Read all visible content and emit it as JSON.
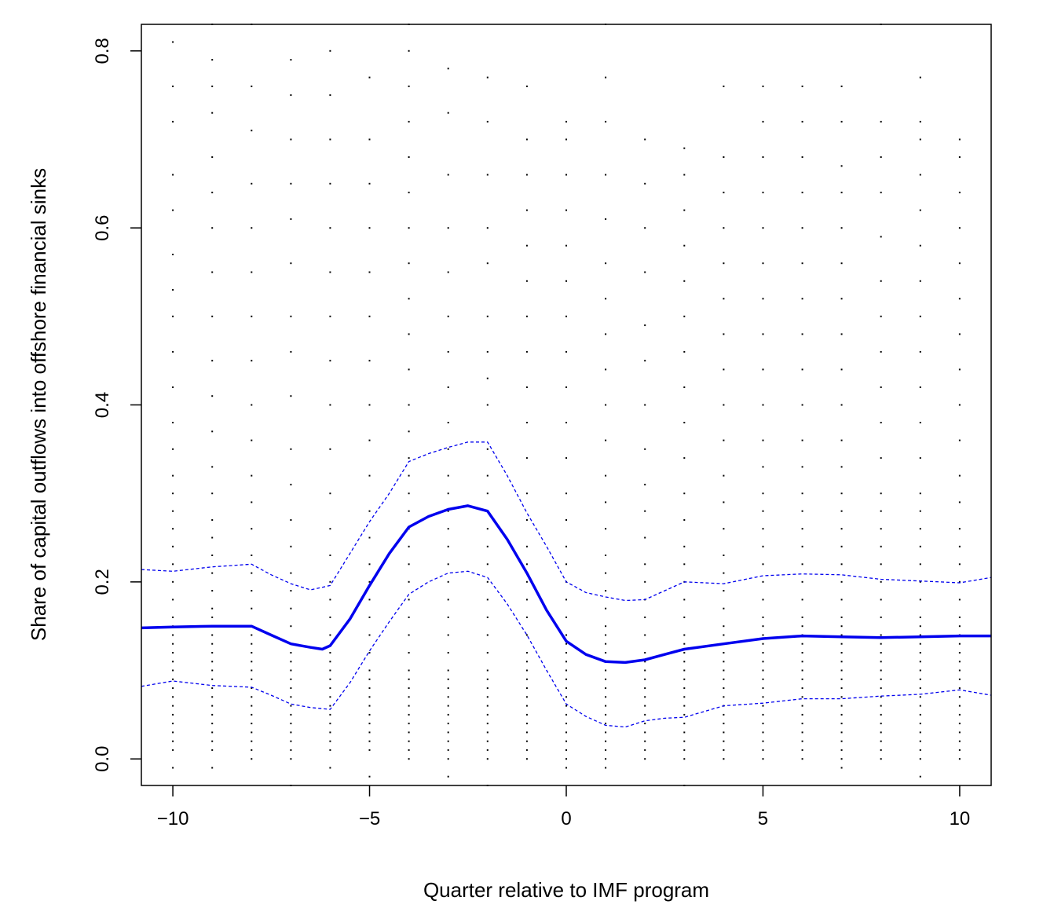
{
  "chart_data": {
    "type": "scatter",
    "title": "",
    "xlabel": "Quarter relative to IMF program",
    "ylabel": "Share of capital outflows into offshore financial sinks",
    "xlim": [
      -10.8,
      10.8
    ],
    "ylim": [
      -0.03,
      0.83
    ],
    "x_ticks": [
      -10,
      -5,
      0,
      5,
      10
    ],
    "x_tick_labels": [
      "−10",
      "−5",
      "0",
      "5",
      "10"
    ],
    "y_ticks": [
      0.0,
      0.2,
      0.4,
      0.6,
      0.8
    ],
    "y_tick_labels": [
      "0.0",
      "0.2",
      "0.4",
      "0.6",
      "0.8"
    ],
    "grid": false,
    "legend": "none",
    "colors": {
      "points": "#000000",
      "fit": "#0000ee",
      "band": "#0000ee",
      "frame": "#000000"
    },
    "points_by_quarter": [
      {
        "x": -10,
        "y": [
          0.01,
          0.02,
          0.03,
          0.04,
          0.05,
          0.06,
          0.07,
          0.08,
          0.09,
          0.1,
          0.11,
          0.12,
          0.13,
          0.14,
          0.15,
          0.16,
          0.18,
          0.2,
          0.22,
          0.24,
          0.26,
          0.28,
          0.3,
          0.32,
          0.35,
          0.38,
          0.42,
          0.46,
          0.5,
          0.53,
          0.57,
          0.62,
          0.66,
          0.72,
          0.76,
          0.81,
          -0.01
        ]
      },
      {
        "x": -9,
        "y": [
          0.01,
          0.02,
          0.03,
          0.04,
          0.05,
          0.06,
          0.07,
          0.08,
          0.09,
          0.1,
          0.11,
          0.12,
          0.13,
          0.14,
          0.15,
          0.16,
          0.17,
          0.19,
          0.21,
          0.23,
          0.25,
          0.27,
          0.3,
          0.33,
          0.37,
          0.41,
          0.45,
          0.5,
          0.55,
          0.6,
          0.64,
          0.68,
          0.73,
          0.76,
          0.79,
          0.83,
          -0.01
        ]
      },
      {
        "x": -8,
        "y": [
          0.0,
          0.01,
          0.02,
          0.03,
          0.04,
          0.05,
          0.06,
          0.07,
          0.08,
          0.09,
          0.1,
          0.11,
          0.12,
          0.13,
          0.14,
          0.15,
          0.17,
          0.19,
          0.21,
          0.23,
          0.26,
          0.29,
          0.32,
          0.36,
          0.4,
          0.45,
          0.5,
          0.55,
          0.6,
          0.65,
          0.71,
          0.76,
          0.83
        ]
      },
      {
        "x": -7,
        "y": [
          0.0,
          0.01,
          0.02,
          0.03,
          0.04,
          0.05,
          0.06,
          0.07,
          0.08,
          0.09,
          0.1,
          0.11,
          0.12,
          0.13,
          0.15,
          0.17,
          0.19,
          0.21,
          0.24,
          0.27,
          0.31,
          0.35,
          0.41,
          0.46,
          0.5,
          0.56,
          0.61,
          0.65,
          0.7,
          0.75,
          0.79,
          -0.03
        ]
      },
      {
        "x": -6,
        "y": [
          0.01,
          0.02,
          0.03,
          0.04,
          0.05,
          0.06,
          0.07,
          0.08,
          0.09,
          0.1,
          0.11,
          0.12,
          0.14,
          0.16,
          0.18,
          0.2,
          0.23,
          0.26,
          0.3,
          0.35,
          0.4,
          0.45,
          0.5,
          0.55,
          0.6,
          0.65,
          0.7,
          0.75,
          0.8,
          -0.01
        ]
      },
      {
        "x": -5,
        "y": [
          0.01,
          0.02,
          0.03,
          0.04,
          0.05,
          0.06,
          0.07,
          0.08,
          0.09,
          0.1,
          0.12,
          0.14,
          0.16,
          0.18,
          0.2,
          0.22,
          0.25,
          0.28,
          0.32,
          0.36,
          0.4,
          0.45,
          0.5,
          0.55,
          0.6,
          0.65,
          0.7,
          0.77,
          -0.02
        ]
      },
      {
        "x": -4,
        "y": [
          0.0,
          0.01,
          0.02,
          0.03,
          0.04,
          0.05,
          0.06,
          0.07,
          0.08,
          0.09,
          0.1,
          0.12,
          0.14,
          0.16,
          0.18,
          0.2,
          0.22,
          0.24,
          0.26,
          0.28,
          0.3,
          0.32,
          0.34,
          0.37,
          0.4,
          0.44,
          0.48,
          0.52,
          0.56,
          0.6,
          0.64,
          0.68,
          0.72,
          0.76,
          0.8,
          0.83
        ]
      },
      {
        "x": -3,
        "y": [
          0.0,
          0.01,
          0.02,
          0.03,
          0.04,
          0.05,
          0.06,
          0.07,
          0.08,
          0.09,
          0.1,
          0.12,
          0.14,
          0.16,
          0.18,
          0.2,
          0.22,
          0.24,
          0.26,
          0.28,
          0.3,
          0.32,
          0.35,
          0.38,
          0.42,
          0.46,
          0.5,
          0.55,
          0.6,
          0.66,
          0.73,
          0.78,
          -0.02
        ]
      },
      {
        "x": -2,
        "y": [
          0.0,
          0.01,
          0.02,
          0.03,
          0.04,
          0.05,
          0.06,
          0.07,
          0.08,
          0.09,
          0.1,
          0.12,
          0.14,
          0.16,
          0.18,
          0.2,
          0.22,
          0.24,
          0.26,
          0.28,
          0.3,
          0.32,
          0.35,
          0.4,
          0.43,
          0.46,
          0.5,
          0.56,
          0.6,
          0.66,
          0.72,
          0.77,
          -0.03
        ]
      },
      {
        "x": -1,
        "y": [
          0.0,
          0.01,
          0.02,
          0.03,
          0.04,
          0.05,
          0.06,
          0.07,
          0.08,
          0.09,
          0.1,
          0.11,
          0.12,
          0.14,
          0.16,
          0.18,
          0.2,
          0.22,
          0.24,
          0.27,
          0.3,
          0.34,
          0.38,
          0.42,
          0.46,
          0.5,
          0.54,
          0.58,
          0.62,
          0.66,
          0.7,
          0.76
        ]
      },
      {
        "x": 0,
        "y": [
          0.0,
          0.01,
          0.02,
          0.03,
          0.04,
          0.05,
          0.06,
          0.07,
          0.08,
          0.09,
          0.1,
          0.11,
          0.12,
          0.13,
          0.14,
          0.16,
          0.18,
          0.2,
          0.22,
          0.24,
          0.27,
          0.3,
          0.34,
          0.38,
          0.42,
          0.46,
          0.5,
          0.54,
          0.58,
          0.62,
          0.66,
          0.7,
          0.72,
          -0.01
        ]
      },
      {
        "x": 1,
        "y": [
          0.0,
          0.01,
          0.02,
          0.03,
          0.04,
          0.05,
          0.06,
          0.07,
          0.08,
          0.09,
          0.1,
          0.11,
          0.12,
          0.13,
          0.14,
          0.15,
          0.17,
          0.19,
          0.21,
          0.23,
          0.26,
          0.29,
          0.32,
          0.36,
          0.4,
          0.44,
          0.48,
          0.52,
          0.56,
          0.61,
          0.66,
          0.72,
          0.77,
          0.83,
          -0.01
        ]
      },
      {
        "x": 2,
        "y": [
          0.0,
          0.01,
          0.02,
          0.03,
          0.04,
          0.05,
          0.06,
          0.07,
          0.08,
          0.09,
          0.1,
          0.11,
          0.12,
          0.14,
          0.16,
          0.18,
          0.2,
          0.22,
          0.25,
          0.28,
          0.31,
          0.35,
          0.4,
          0.45,
          0.49,
          0.55,
          0.6,
          0.65,
          0.7
        ]
      },
      {
        "x": 3,
        "y": [
          0.0,
          0.01,
          0.02,
          0.03,
          0.04,
          0.05,
          0.06,
          0.07,
          0.08,
          0.09,
          0.1,
          0.11,
          0.12,
          0.13,
          0.14,
          0.16,
          0.18,
          0.2,
          0.22,
          0.24,
          0.27,
          0.3,
          0.34,
          0.38,
          0.42,
          0.46,
          0.5,
          0.54,
          0.58,
          0.62,
          0.66,
          0.69,
          -0.03
        ]
      },
      {
        "x": 4,
        "y": [
          0.0,
          0.01,
          0.02,
          0.03,
          0.04,
          0.05,
          0.06,
          0.07,
          0.08,
          0.09,
          0.1,
          0.11,
          0.12,
          0.13,
          0.14,
          0.15,
          0.17,
          0.19,
          0.21,
          0.23,
          0.26,
          0.29,
          0.32,
          0.36,
          0.4,
          0.44,
          0.48,
          0.52,
          0.56,
          0.6,
          0.64,
          0.68,
          0.76
        ]
      },
      {
        "x": 5,
        "y": [
          0.0,
          0.01,
          0.02,
          0.03,
          0.04,
          0.05,
          0.06,
          0.07,
          0.08,
          0.09,
          0.1,
          0.11,
          0.12,
          0.13,
          0.14,
          0.15,
          0.16,
          0.18,
          0.2,
          0.22,
          0.24,
          0.26,
          0.28,
          0.3,
          0.33,
          0.36,
          0.4,
          0.44,
          0.48,
          0.52,
          0.56,
          0.6,
          0.64,
          0.68,
          0.72,
          0.76
        ]
      },
      {
        "x": 6,
        "y": [
          0.0,
          0.01,
          0.02,
          0.03,
          0.04,
          0.05,
          0.06,
          0.07,
          0.08,
          0.09,
          0.1,
          0.11,
          0.12,
          0.13,
          0.14,
          0.15,
          0.16,
          0.18,
          0.2,
          0.22,
          0.24,
          0.26,
          0.28,
          0.3,
          0.33,
          0.36,
          0.4,
          0.44,
          0.48,
          0.52,
          0.56,
          0.6,
          0.64,
          0.68,
          0.72,
          0.76
        ]
      },
      {
        "x": 7,
        "y": [
          0.0,
          0.01,
          0.02,
          0.03,
          0.04,
          0.05,
          0.06,
          0.07,
          0.08,
          0.09,
          0.1,
          0.11,
          0.12,
          0.13,
          0.14,
          0.15,
          0.16,
          0.18,
          0.2,
          0.22,
          0.24,
          0.26,
          0.28,
          0.3,
          0.33,
          0.36,
          0.4,
          0.44,
          0.48,
          0.52,
          0.56,
          0.6,
          0.64,
          0.67,
          0.72,
          0.76,
          -0.01
        ]
      },
      {
        "x": 8,
        "y": [
          0.0,
          0.01,
          0.02,
          0.03,
          0.04,
          0.05,
          0.06,
          0.07,
          0.08,
          0.09,
          0.1,
          0.11,
          0.12,
          0.13,
          0.14,
          0.16,
          0.18,
          0.2,
          0.22,
          0.24,
          0.26,
          0.28,
          0.3,
          0.34,
          0.38,
          0.42,
          0.46,
          0.5,
          0.54,
          0.59,
          0.64,
          0.68,
          0.72,
          0.83
        ]
      },
      {
        "x": 9,
        "y": [
          0.0,
          0.01,
          0.02,
          0.03,
          0.04,
          0.05,
          0.06,
          0.07,
          0.08,
          0.09,
          0.1,
          0.11,
          0.12,
          0.13,
          0.14,
          0.15,
          0.16,
          0.18,
          0.2,
          0.22,
          0.24,
          0.26,
          0.28,
          0.3,
          0.34,
          0.38,
          0.42,
          0.46,
          0.5,
          0.54,
          0.58,
          0.62,
          0.66,
          0.7,
          0.72,
          0.77,
          -0.02
        ]
      },
      {
        "x": 10,
        "y": [
          0.0,
          0.01,
          0.02,
          0.03,
          0.04,
          0.05,
          0.06,
          0.07,
          0.08,
          0.09,
          0.1,
          0.11,
          0.12,
          0.13,
          0.14,
          0.15,
          0.16,
          0.18,
          0.2,
          0.22,
          0.24,
          0.26,
          0.29,
          0.32,
          0.36,
          0.4,
          0.44,
          0.48,
          0.52,
          0.56,
          0.6,
          0.64,
          0.68,
          0.7
        ]
      }
    ],
    "series": [
      {
        "role": "fit",
        "style": "solid",
        "x": [
          -10.8,
          -10,
          -9,
          -8,
          -7.5,
          -7,
          -6.5,
          -6.2,
          -6,
          -5.5,
          -5,
          -4.5,
          -4,
          -3.5,
          -3,
          -2.5,
          -2,
          -1.5,
          -1,
          -0.5,
          0,
          0.5,
          1,
          1.5,
          2,
          2.5,
          3,
          4,
          5,
          6,
          7,
          8,
          9,
          10,
          10.8
        ],
        "y": [
          0.148,
          0.149,
          0.15,
          0.15,
          0.14,
          0.13,
          0.126,
          0.124,
          0.128,
          0.158,
          0.196,
          0.232,
          0.262,
          0.274,
          0.282,
          0.286,
          0.28,
          0.248,
          0.21,
          0.168,
          0.133,
          0.118,
          0.11,
          0.109,
          0.112,
          0.118,
          0.124,
          0.13,
          0.136,
          0.139,
          0.138,
          0.137,
          0.138,
          0.139,
          0.139
        ]
      },
      {
        "role": "upper-band",
        "style": "dashed",
        "x": [
          -10.8,
          -10,
          -9,
          -8,
          -7.5,
          -7,
          -6.5,
          -6,
          -5.5,
          -5,
          -4.5,
          -4,
          -3.5,
          -3,
          -2.5,
          -2,
          -1.5,
          -1,
          -0.5,
          0,
          0.5,
          1,
          1.5,
          2,
          2.5,
          3,
          4,
          5,
          6,
          7,
          8,
          9,
          10,
          10.8
        ],
        "y": [
          0.214,
          0.212,
          0.217,
          0.22,
          0.208,
          0.198,
          0.191,
          0.196,
          0.232,
          0.268,
          0.3,
          0.336,
          0.345,
          0.352,
          0.358,
          0.358,
          0.32,
          0.278,
          0.24,
          0.2,
          0.188,
          0.183,
          0.179,
          0.18,
          0.19,
          0.2,
          0.198,
          0.207,
          0.209,
          0.208,
          0.203,
          0.201,
          0.199,
          0.205
        ]
      },
      {
        "role": "lower-band",
        "style": "dashed",
        "x": [
          -10.8,
          -10,
          -9,
          -8,
          -7.5,
          -7,
          -6.5,
          -6,
          -5.5,
          -5,
          -4.5,
          -4,
          -3.5,
          -3,
          -2.5,
          -2,
          -1.5,
          -1,
          -0.5,
          0,
          0.5,
          1,
          1.5,
          2,
          2.5,
          3,
          4,
          5,
          6,
          7,
          8,
          9,
          10,
          10.8
        ],
        "y": [
          0.082,
          0.088,
          0.083,
          0.081,
          0.072,
          0.062,
          0.058,
          0.056,
          0.086,
          0.122,
          0.155,
          0.186,
          0.2,
          0.21,
          0.212,
          0.205,
          0.175,
          0.14,
          0.1,
          0.062,
          0.048,
          0.038,
          0.036,
          0.043,
          0.046,
          0.047,
          0.06,
          0.063,
          0.068,
          0.068,
          0.071,
          0.073,
          0.078,
          0.072
        ]
      }
    ]
  }
}
